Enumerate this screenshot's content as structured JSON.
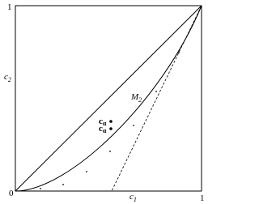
{
  "labels": {
    "y_top": "1",
    "y_axis": {
      "base": "c",
      "sub": "2"
    },
    "origin": "0",
    "x_axis": {
      "base": "c",
      "sub": "1"
    },
    "x_right": "1",
    "region": {
      "base": "M",
      "sub": "2"
    },
    "point_upper": {
      "base": "c",
      "sub": "α"
    },
    "point_lower": {
      "base": "c",
      "sub": "α"
    }
  }
}
